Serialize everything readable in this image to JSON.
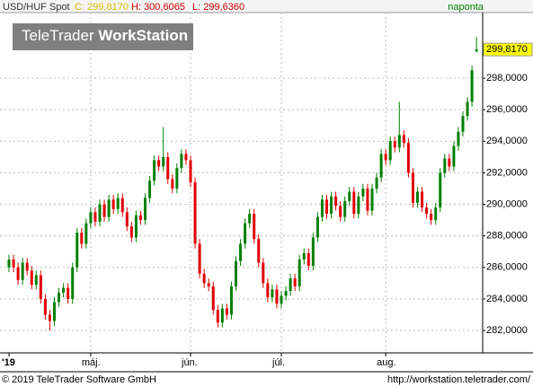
{
  "header": {
    "symbol": "USD/HUF Spot",
    "close_text": "C: 299,8170",
    "high_text": "H: 300,6065",
    "low_text": "L: 299,6360",
    "period": "naponta"
  },
  "logo": {
    "prefix": "TeleTrader",
    "bold": "WorkStation"
  },
  "footer": {
    "copyright": "© 2019 TeleTrader Software GmbH",
    "url": "http://workstation.teletrader.com/"
  },
  "chart_data": {
    "type": "candlestick",
    "categories": [
      "'19",
      null,
      null,
      null,
      null,
      null,
      null,
      null,
      null,
      null,
      null,
      null,
      null,
      null,
      null,
      null,
      null,
      null,
      "máj.",
      null,
      null,
      null,
      null,
      null,
      null,
      null,
      null,
      null,
      null,
      null,
      null,
      null,
      null,
      null,
      null,
      null,
      null,
      null,
      null,
      null,
      "jún.",
      null,
      null,
      null,
      null,
      null,
      null,
      null,
      null,
      null,
      null,
      null,
      null,
      null,
      null,
      null,
      null,
      null,
      null,
      null,
      "júl.",
      null,
      null,
      null,
      null,
      null,
      null,
      null,
      null,
      null,
      null,
      null,
      null,
      null,
      null,
      null,
      null,
      null,
      null,
      null,
      null,
      null,
      null,
      "aug.",
      null,
      null,
      null,
      null,
      null,
      null,
      null,
      null,
      null,
      null,
      null,
      null,
      null,
      null,
      null,
      null,
      null,
      null,
      null,
      null
    ],
    "open": [
      286.0,
      286.5,
      286.0,
      285.2,
      286.3,
      285.8,
      284.9,
      285.5,
      284.0,
      283.0,
      282.6,
      283.8,
      284.4,
      284.7,
      284.0,
      286.0,
      288.2,
      287.5,
      288.8,
      289.5,
      288.9,
      290.0,
      289.2,
      290.3,
      289.7,
      290.4,
      289.5,
      288.6,
      287.9,
      289.3,
      289.0,
      290.4,
      291.5,
      292.8,
      292.4,
      293.0,
      291.6,
      291.0,
      292.3,
      293.2,
      292.8,
      291.4,
      287.5,
      285.6,
      285.0,
      284.8,
      283.3,
      282.5,
      283.4,
      283.0,
      284.8,
      286.4,
      287.5,
      288.8,
      289.4,
      287.8,
      286.3,
      285.0,
      284.1,
      284.6,
      283.7,
      284.2,
      284.5,
      285.3,
      284.8,
      286.5,
      286.9,
      286.1,
      287.9,
      289.2,
      290.3,
      289.4,
      290.5,
      289.9,
      289.2,
      290.2,
      290.8,
      289.4,
      290.5,
      291.0,
      289.6,
      291.0,
      291.7,
      293.2,
      292.8,
      294.0,
      293.6,
      294.4,
      293.9,
      292.0,
      290.1,
      290.8,
      289.8,
      289.4,
      289.0,
      289.8,
      292.0,
      292.9,
      292.4,
      293.7,
      294.6,
      295.6,
      296.5,
      299.7
    ],
    "high": [
      286.8,
      286.8,
      286.3,
      286.6,
      286.6,
      286.1,
      285.8,
      285.8,
      284.3,
      283.3,
      284.1,
      284.7,
      285.0,
      285.0,
      286.3,
      288.5,
      288.5,
      289.1,
      289.8,
      289.8,
      290.3,
      290.3,
      290.6,
      290.6,
      290.7,
      290.7,
      289.8,
      288.9,
      289.6,
      289.6,
      290.7,
      291.8,
      293.1,
      293.1,
      294.9,
      293.3,
      291.9,
      292.6,
      293.5,
      293.5,
      293.1,
      291.7,
      287.8,
      285.9,
      285.3,
      285.1,
      283.6,
      283.7,
      283.7,
      285.1,
      286.7,
      287.8,
      289.1,
      289.7,
      289.7,
      288.1,
      286.6,
      285.3,
      284.9,
      284.9,
      284.5,
      284.8,
      285.6,
      285.6,
      286.8,
      287.2,
      287.2,
      288.2,
      289.5,
      290.6,
      290.6,
      290.8,
      290.8,
      290.2,
      290.5,
      291.1,
      291.1,
      290.8,
      291.3,
      291.3,
      291.3,
      292.0,
      293.5,
      293.5,
      294.3,
      294.3,
      296.5,
      294.7,
      294.2,
      292.3,
      291.1,
      291.1,
      290.1,
      289.7,
      290.1,
      292.3,
      293.2,
      293.2,
      294.0,
      294.9,
      295.9,
      296.8,
      298.8,
      300.6065
    ],
    "low": [
      285.7,
      285.7,
      284.9,
      284.9,
      285.5,
      284.6,
      284.6,
      283.7,
      282.7,
      282.0,
      282.3,
      283.5,
      284.1,
      283.7,
      283.7,
      285.7,
      287.2,
      287.2,
      288.5,
      288.6,
      288.6,
      288.9,
      288.9,
      289.4,
      289.4,
      289.2,
      288.3,
      287.6,
      287.6,
      288.7,
      288.7,
      290.1,
      291.2,
      292.1,
      292.1,
      291.3,
      290.7,
      290.7,
      292.0,
      292.5,
      291.1,
      287.2,
      285.3,
      284.7,
      284.5,
      283.0,
      282.2,
      282.2,
      282.7,
      282.7,
      284.5,
      286.1,
      287.2,
      288.5,
      287.5,
      286.0,
      284.7,
      283.8,
      283.8,
      283.4,
      283.4,
      283.9,
      284.2,
      284.5,
      284.5,
      286.2,
      285.8,
      285.8,
      287.6,
      288.9,
      289.1,
      289.1,
      289.6,
      288.9,
      288.9,
      289.9,
      289.1,
      289.1,
      290.2,
      289.3,
      289.3,
      290.7,
      291.4,
      292.5,
      292.5,
      293.3,
      293.3,
      293.6,
      291.7,
      289.8,
      289.8,
      289.5,
      289.1,
      288.7,
      288.7,
      289.5,
      291.7,
      292.1,
      292.1,
      293.4,
      294.3,
      295.3,
      296.2,
      299.636
    ],
    "close": [
      286.5,
      286.0,
      285.2,
      286.3,
      285.8,
      284.9,
      285.5,
      284.0,
      283.0,
      282.6,
      283.8,
      284.4,
      284.7,
      284.0,
      286.0,
      288.2,
      287.5,
      288.8,
      289.5,
      288.9,
      290.0,
      289.2,
      290.3,
      289.7,
      290.4,
      289.5,
      288.6,
      287.9,
      289.3,
      289.0,
      290.4,
      291.5,
      292.8,
      292.4,
      293.0,
      291.6,
      291.0,
      292.3,
      293.2,
      292.8,
      291.4,
      287.5,
      285.6,
      285.0,
      284.8,
      283.3,
      282.5,
      283.4,
      283.0,
      284.8,
      286.4,
      287.5,
      288.8,
      289.4,
      287.8,
      286.3,
      285.0,
      284.1,
      284.6,
      283.7,
      284.2,
      284.5,
      285.3,
      284.8,
      286.5,
      286.9,
      286.1,
      287.9,
      289.2,
      290.3,
      289.4,
      290.5,
      289.9,
      289.2,
      290.2,
      290.8,
      289.4,
      290.5,
      291.0,
      289.6,
      291.0,
      291.7,
      293.2,
      292.8,
      294.0,
      293.6,
      294.4,
      293.9,
      292.0,
      290.1,
      290.8,
      289.8,
      289.4,
      289.0,
      289.8,
      292.0,
      292.9,
      292.4,
      293.7,
      294.6,
      295.6,
      296.5,
      298.5,
      299.817
    ],
    "last_label": "299,8170",
    "up_color": "#008000",
    "down_color": "#e00000",
    "ylim": [
      280.58,
      302.16
    ],
    "yticks": [
      {
        "value": 282,
        "label": "282,0000"
      },
      {
        "value": 284,
        "label": "284,0000"
      },
      {
        "value": 286,
        "label": "286,0000"
      },
      {
        "value": 288,
        "label": "288,0000"
      },
      {
        "value": 290,
        "label": "290,0000"
      },
      {
        "value": 292,
        "label": "292,0000"
      },
      {
        "value": 294,
        "label": "294,0000"
      },
      {
        "value": 296,
        "label": "296,0000"
      },
      {
        "value": 298,
        "label": "298,0000"
      }
    ],
    "grid": true
  }
}
